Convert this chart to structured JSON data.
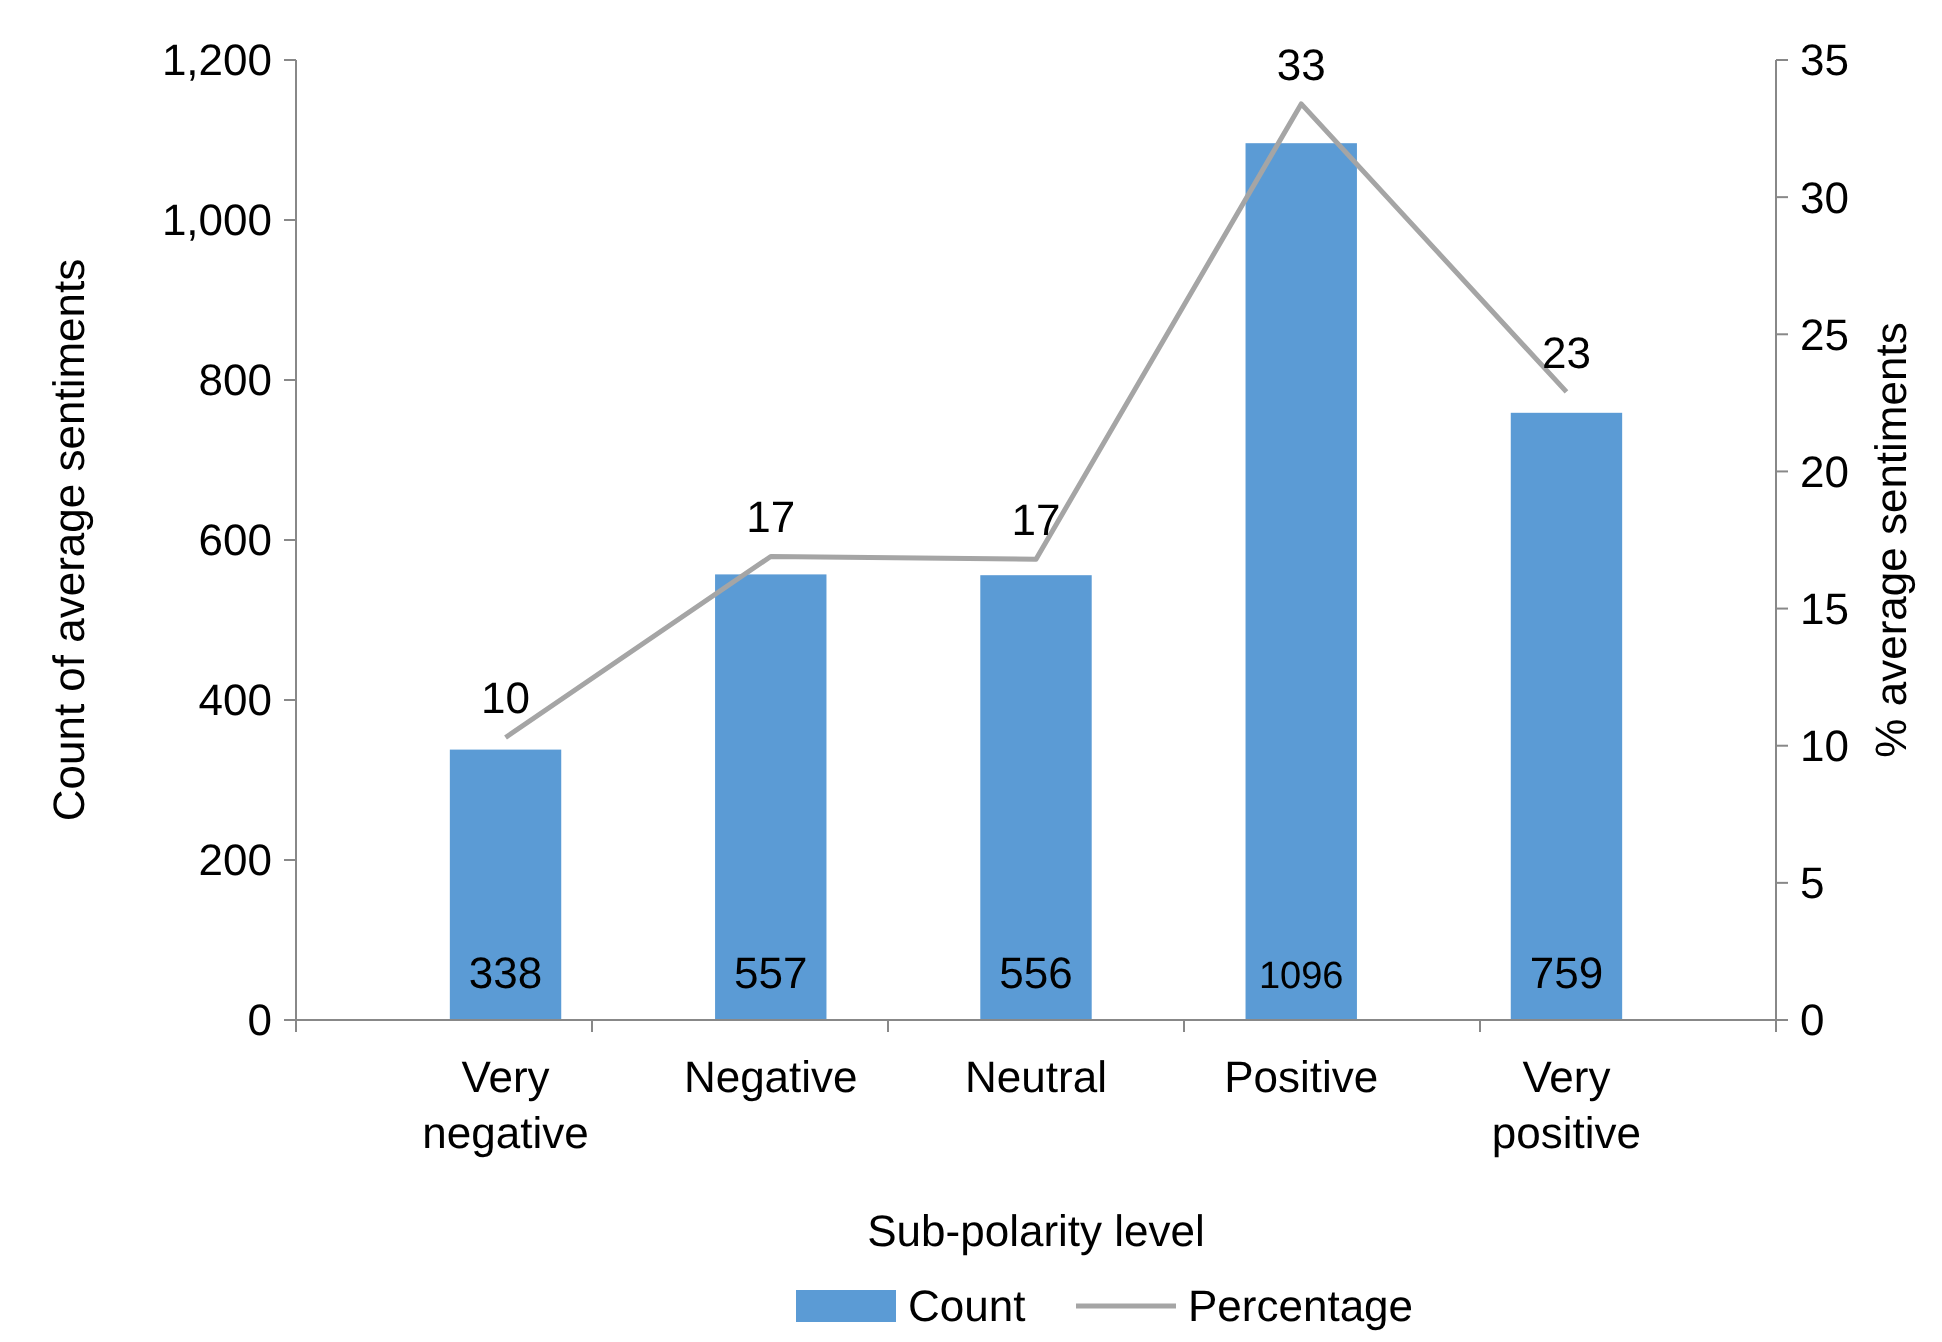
{
  "chart_data": {
    "type": "bar",
    "xlabel": "Sub-polarity level",
    "ylabel": "Count of average sentiments",
    "y2label": "% average sentiments",
    "categories": [
      "Very negative",
      "Negative",
      "Neutral",
      "Positive",
      "Very positive"
    ],
    "series": [
      {
        "name": "Count",
        "color": "#5b9bd5",
        "values": [
          338,
          557,
          556,
          1096,
          759
        ],
        "value_labels": [
          "338",
          "557",
          "556",
          "1096",
          "759"
        ]
      },
      {
        "name": "Percentage",
        "type": "line",
        "axis": "y2",
        "color": "#a5a5a5",
        "values": [
          10.3,
          16.9,
          16.8,
          33.4,
          22.9
        ],
        "value_labels": [
          "10",
          "17",
          "17",
          "33",
          "23"
        ]
      }
    ],
    "ylim": [
      0,
      1200
    ],
    "yticks": [
      0,
      {
        "value": 200,
        "label": "200"
      },
      {
        "value": 400,
        "label": "400"
      },
      {
        "value": 600,
        "label": "600"
      },
      {
        "value": 800,
        "label": "800"
      },
      {
        "value": 1000,
        "label": "1,000"
      },
      {
        "value": 1200,
        "label": "1,200"
      }
    ],
    "y2lim": [
      0,
      35
    ],
    "y2ticks": [
      0,
      5,
      10,
      15,
      20,
      25,
      30,
      35
    ],
    "grid": false,
    "legend": "bottom",
    "marker": "none",
    "line_style": "solid"
  }
}
